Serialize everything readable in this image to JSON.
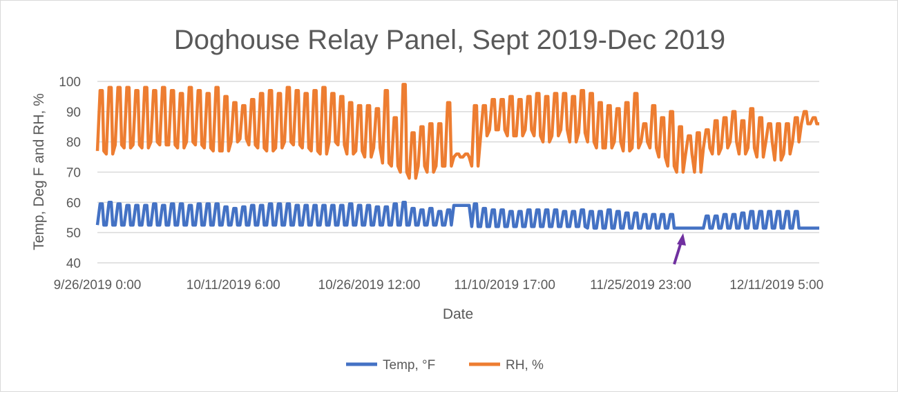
{
  "chart_data": {
    "type": "line",
    "title": "Doghouse Relay Panel, Sept 2019-Dec 2019",
    "xlabel": "Date",
    "ylabel": "Temp, Deg F and RH, %",
    "ylim": [
      40,
      100
    ],
    "yticks": [
      "40",
      "50",
      "60",
      "70",
      "80",
      "90",
      "100"
    ],
    "xlim": [
      "2019-09-26 00:00",
      "2019-12-16 00:00"
    ],
    "xticks": [
      {
        "label": "9/26/2019 0:00",
        "date": "2019-09-26 00:00"
      },
      {
        "label": "10/11/2019 6:00",
        "date": "2019-10-11 06:00"
      },
      {
        "label": "10/26/2019 12:00",
        "date": "2019-10-26 12:00"
      },
      {
        "label": "11/10/2019 17:00",
        "date": "2019-11-10 17:00"
      },
      {
        "label": "11/25/2019 23:00",
        "date": "2019-11-25 23:00"
      },
      {
        "label": "12/11/2019 5:00",
        "date": "2019-12-11 05:00"
      }
    ],
    "grid": true,
    "legend_position": "bottom",
    "first_day": "2019-09-26",
    "series": [
      {
        "name": "Temp, °F",
        "color": "#4472C4",
        "daily_max": [
          59.5,
          60,
          59.5,
          59,
          59,
          59,
          59.5,
          59,
          59.5,
          59.5,
          59,
          59.5,
          59.5,
          59.5,
          58.5,
          58,
          58.5,
          59,
          59,
          59.5,
          59.5,
          59.5,
          59,
          59,
          59,
          59,
          59,
          59,
          59.5,
          59,
          59,
          58.5,
          58.5,
          59.5,
          60,
          58,
          57.5,
          58,
          57,
          57.5,
          59,
          59,
          59.5,
          58,
          57.5,
          57.5,
          57,
          57,
          57.5,
          57.5,
          57.5,
          57.5,
          57,
          57,
          57.5,
          57,
          57,
          57.5,
          57,
          56.5,
          56.5,
          56,
          56,
          56,
          56,
          51.5,
          51.5,
          51.5,
          55.5,
          55.5,
          56,
          56,
          56.5,
          57,
          57,
          57,
          57,
          57,
          57,
          51.5,
          51.5
        ],
        "daily_min": [
          52.5,
          52.5,
          52.5,
          52.5,
          52.5,
          52.5,
          52.5,
          52.5,
          52.5,
          52.5,
          52.5,
          52.5,
          52.5,
          52.5,
          52.5,
          52.5,
          52.5,
          52.5,
          52.5,
          52.5,
          52.5,
          52.5,
          52.5,
          52.5,
          52.5,
          52.5,
          52.5,
          52.5,
          52.5,
          52.5,
          52.5,
          52.5,
          52.5,
          52.5,
          52.5,
          52.5,
          52.5,
          52.5,
          52.5,
          52.5,
          59,
          59,
          52,
          52,
          52,
          52,
          52,
          52,
          52,
          52,
          52,
          52,
          52,
          52,
          52,
          51.5,
          51.5,
          51.5,
          51.5,
          51.5,
          51.5,
          51.5,
          51.5,
          51.5,
          51.5,
          51.5,
          51.5,
          51.5,
          51.5,
          51.5,
          51.5,
          51.5,
          51.5,
          51.5,
          51.5,
          51.5,
          51.5,
          51.5,
          51.5,
          51.5,
          51.5
        ]
      },
      {
        "name": "RH, %",
        "color": "#ED7D31",
        "daily_max": [
          97,
          98,
          98,
          98,
          97,
          98,
          97,
          98,
          97,
          96,
          98,
          97,
          96,
          98,
          95,
          93,
          92,
          94,
          96,
          97,
          96,
          98,
          97,
          96,
          97,
          98,
          96,
          95,
          93,
          92,
          92,
          91,
          97,
          88,
          99,
          83,
          85,
          86,
          86,
          93,
          76,
          76,
          92,
          92,
          94,
          94,
          95,
          94,
          95,
          96,
          95,
          96,
          96,
          95,
          97,
          96,
          93,
          92,
          91,
          93,
          96,
          86,
          92,
          88,
          90,
          85,
          82,
          83,
          84,
          87,
          88,
          90,
          87,
          91,
          88,
          86,
          86,
          86,
          88,
          90,
          88
        ],
        "daily_min": [
          77,
          76,
          79,
          78,
          79,
          78,
          80,
          79,
          79,
          78,
          80,
          79,
          78,
          77,
          77,
          80,
          81,
          79,
          78,
          77,
          78,
          80,
          79,
          78,
          77,
          76,
          80,
          79,
          76,
          77,
          75,
          78,
          73,
          72,
          70,
          68,
          72,
          70,
          72,
          72,
          75,
          75,
          72,
          82,
          84,
          84,
          82,
          82,
          84,
          82,
          80,
          82,
          84,
          80,
          83,
          80,
          78,
          78,
          80,
          77,
          78,
          80,
          78,
          75,
          72,
          70,
          76,
          70,
          78,
          76,
          78,
          80,
          76,
          78,
          75,
          80,
          74,
          76,
          80,
          86,
          86
        ]
      }
    ],
    "annotations": [
      {
        "type": "arrow",
        "color": "#7030A0",
        "points_to": "2019-11-28"
      }
    ]
  }
}
